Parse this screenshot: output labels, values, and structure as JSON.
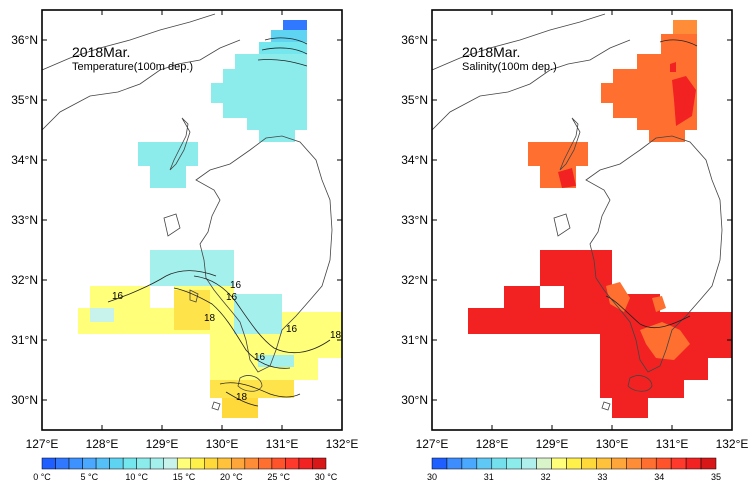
{
  "panels": [
    {
      "title": "2018Mar.",
      "subtitle": "Temperature(100m dep.)",
      "contour_labels": [
        "16",
        "16",
        "18",
        "16",
        "16",
        "18",
        "16",
        "18"
      ],
      "colorbar": {
        "labels": [
          "0 °C",
          "5 °C",
          "10 °C",
          "15 °C",
          "20 °C",
          "25 °C",
          "30 °C"
        ],
        "colors": [
          "#1f5fff",
          "#2f78ff",
          "#3d92ff",
          "#4aa8ff",
          "#55bff7",
          "#5fd4f2",
          "#74e6ee",
          "#8cecec",
          "#a4f0ec",
          "#c8f2ec",
          "#ffff7a",
          "#fff04a",
          "#ffd93a",
          "#ffc23a",
          "#ffa63a",
          "#ff8c36",
          "#ff7030",
          "#ff532c",
          "#ff3a2c",
          "#f22222",
          "#d81818"
        ]
      }
    },
    {
      "title": "2018Mar.",
      "subtitle": "Salinity(100m dep.)",
      "contour_labels": [],
      "colorbar": {
        "labels": [
          "30",
          "31",
          "32",
          "33",
          "34",
          "35"
        ],
        "colors": [
          "#1f5fff",
          "#3d8dff",
          "#4aa8ff",
          "#60c8f5",
          "#74e0ee",
          "#8cecec",
          "#b0f0ec",
          "#d8f4c8",
          "#ffff7a",
          "#fff04a",
          "#ffd93a",
          "#ffc23a",
          "#ffa63a",
          "#ff8c36",
          "#ff7030",
          "#ff532c",
          "#ff3a2c",
          "#f22222",
          "#d81818"
        ]
      }
    }
  ],
  "axes": {
    "x_ticks": [
      "127°E",
      "128°E",
      "129°E",
      "130°E",
      "131°E",
      "132°E"
    ],
    "y_ticks": [
      "30°N",
      "31°N",
      "32°N",
      "33°N",
      "34°N",
      "35°N",
      "36°N"
    ],
    "lon_range": [
      127,
      132
    ],
    "lat_range": [
      29.5,
      36.5
    ]
  }
}
